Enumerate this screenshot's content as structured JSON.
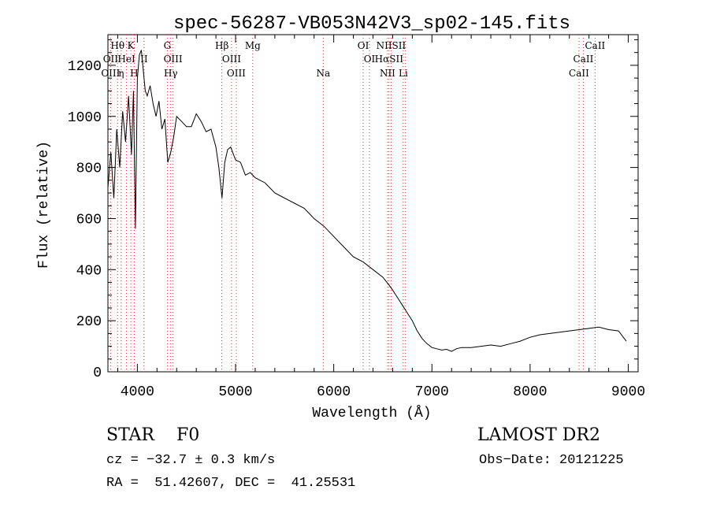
{
  "chart_data": {
    "type": "line",
    "title": "spec-56287-VB053N42V3_sp02-145.fits",
    "xlabel": "Wavelength (Å)",
    "ylabel": "Flux (relative)",
    "xlim": [
      3700,
      9100
    ],
    "ylim": [
      0,
      1320
    ],
    "xticks": [
      4000,
      5000,
      6000,
      7000,
      8000,
      9000
    ],
    "yticks": [
      0,
      200,
      400,
      600,
      800,
      1000,
      1200
    ],
    "grid": false,
    "line_color": "#000000",
    "marker_color": "#cc3333",
    "series": [
      {
        "x": [
          3700,
          3730,
          3760,
          3790,
          3820,
          3850,
          3880,
          3910,
          3940,
          3960,
          3980,
          4000,
          4020,
          4040,
          4060,
          4080,
          4100,
          4130,
          4160,
          4190,
          4220,
          4250,
          4280,
          4310,
          4340,
          4370,
          4400,
          4450,
          4500,
          4550,
          4600,
          4650,
          4700,
          4750,
          4800,
          4830,
          4862,
          4890,
          4920,
          4950,
          5000,
          5050,
          5100,
          5150,
          5200,
          5300,
          5400,
          5500,
          5600,
          5700,
          5800,
          5900,
          6000,
          6100,
          6200,
          6300,
          6400,
          6500,
          6563,
          6600,
          6650,
          6700,
          6750,
          6800,
          6850,
          6900,
          6950,
          7000,
          7050,
          7100,
          7150,
          7200,
          7250,
          7300,
          7400,
          7500,
          7600,
          7700,
          7800,
          7900,
          8000,
          8100,
          8200,
          8300,
          8400,
          8500,
          8600,
          8700,
          8800,
          8900,
          8980
        ],
        "values": [
          720,
          860,
          680,
          950,
          800,
          1020,
          900,
          1080,
          850,
          1100,
          560,
          1150,
          1240,
          1260,
          1180,
          1100,
          1080,
          1120,
          1050,
          1000,
          1060,
          950,
          990,
          820,
          860,
          920,
          1000,
          980,
          960,
          960,
          1010,
          980,
          940,
          950,
          880,
          800,
          680,
          820,
          870,
          880,
          830,
          820,
          770,
          780,
          760,
          740,
          700,
          680,
          660,
          640,
          600,
          570,
          530,
          490,
          450,
          430,
          400,
          370,
          340,
          320,
          290,
          260,
          230,
          200,
          160,
          130,
          110,
          95,
          90,
          85,
          88,
          80,
          90,
          95,
          95,
          100,
          105,
          100,
          110,
          120,
          135,
          145,
          150,
          155,
          160,
          165,
          170,
          175,
          165,
          160,
          120
        ]
      }
    ],
    "line_markers": [
      {
        "label": "Hθ",
        "wave": 3798,
        "row": 0
      },
      {
        "label": "K",
        "wave": 3934,
        "row": 0
      },
      {
        "label": "OII",
        "wave": 3727,
        "row": 1
      },
      {
        "label": "HeI",
        "wave": 3889,
        "row": 1
      },
      {
        "label": "II",
        "wave": 4068,
        "row": 1
      },
      {
        "label": "OIII",
        "wave": 3727,
        "row": 2
      },
      {
        "label": "η",
        "wave": 3835,
        "row": 2
      },
      {
        "label": "H",
        "wave": 3968,
        "row": 2
      },
      {
        "label": "G",
        "wave": 4305,
        "row": 0
      },
      {
        "label": "OIII",
        "wave": 4363,
        "row": 1
      },
      {
        "label": "Hγ",
        "wave": 4340,
        "row": 2
      },
      {
        "label": "Hβ",
        "wave": 4861,
        "row": 0
      },
      {
        "label": "Mg",
        "wave": 5175,
        "row": 0
      },
      {
        "label": "OIII",
        "wave": 4959,
        "row": 1
      },
      {
        "label": "OIII",
        "wave": 5007,
        "row": 2
      },
      {
        "label": "Na",
        "wave": 5893,
        "row": 2
      },
      {
        "label": "OI",
        "wave": 6300,
        "row": 0
      },
      {
        "label": "OI",
        "wave": 6364,
        "row": 1
      },
      {
        "label": "NIISII",
        "wave": 6584,
        "row": 0
      },
      {
        "label": "HαSII",
        "wave": 6563,
        "row": 1
      },
      {
        "label": "NII",
        "wave": 6548,
        "row": 2
      },
      {
        "label": "Li",
        "wave": 6708,
        "row": 2
      },
      {
        "label": "CaII",
        "wave": 8662,
        "row": 0
      },
      {
        "label": "CaII",
        "wave": 8542,
        "row": 1
      },
      {
        "label": "CaII",
        "wave": 8498,
        "row": 2
      }
    ],
    "marker_lines": [
      3727,
      3798,
      3835,
      3889,
      3934,
      3968,
      4068,
      4305,
      4340,
      4363,
      4861,
      4959,
      5007,
      5175,
      5893,
      6300,
      6364,
      6548,
      6563,
      6584,
      6708,
      6731,
      8498,
      8542,
      8662
    ]
  },
  "footer": {
    "object_label": "STAR    F0",
    "survey": "LAMOST DR2",
    "cz": "cz = −32.7 ± 0.3 km/s",
    "obs_date": "Obs−Date: 20121225",
    "coords": "RA =  51.42607, DEC =  41.25531"
  }
}
